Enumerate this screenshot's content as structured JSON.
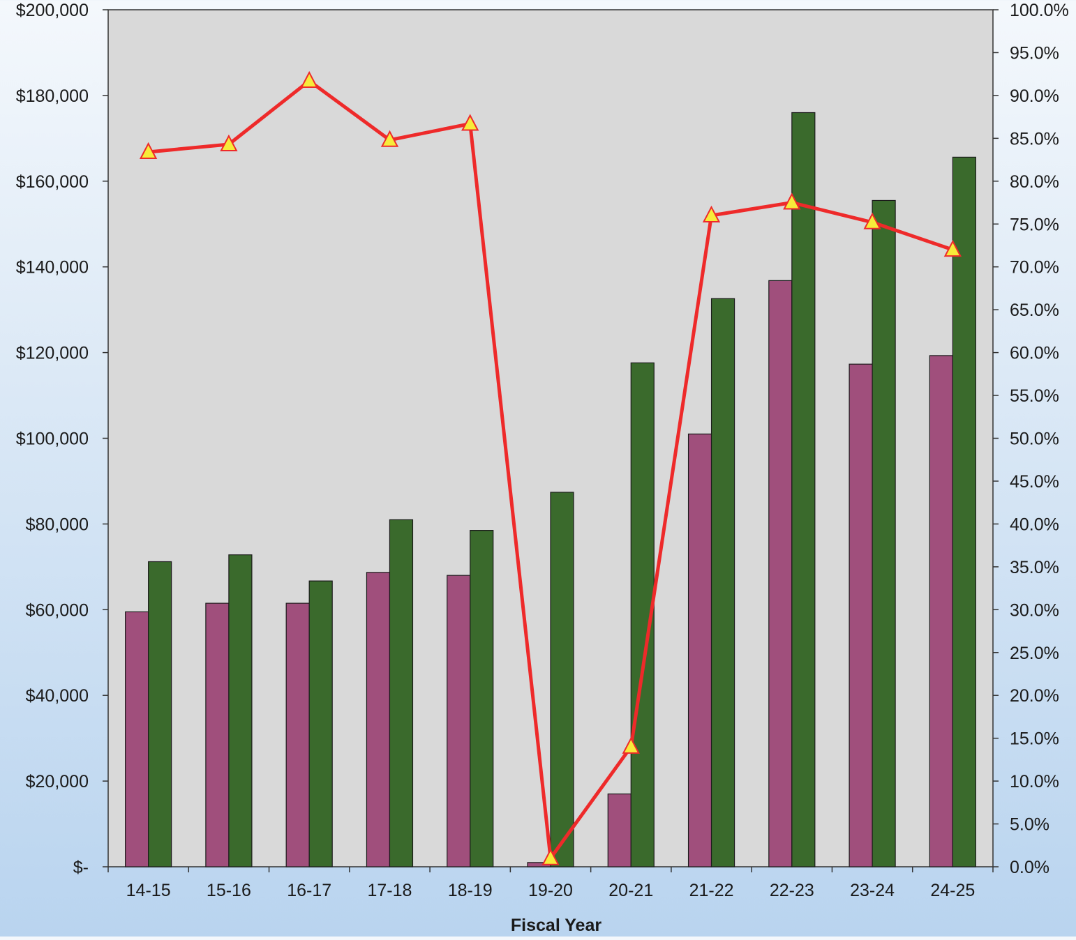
{
  "chart_data": {
    "type": "bar",
    "categories": [
      "14-15",
      "15-16",
      "16-17",
      "17-18",
      "18-19",
      "19-20",
      "20-21",
      "21-22",
      "22-23",
      "23-24",
      "24-25"
    ],
    "series": [
      {
        "values": [
          59500,
          61500,
          61500,
          68700,
          68000,
          1000,
          17000,
          101000,
          136800,
          117300,
          119300
        ],
        "color": "#a04f7c",
        "axis": "left"
      },
      {
        "values": [
          71200,
          72800,
          66700,
          81000,
          78500,
          87400,
          117600,
          132600,
          176000,
          155500,
          165600
        ],
        "color": "#3a6a2c",
        "axis": "left"
      },
      {
        "type": "line",
        "values": [
          0.834,
          0.843,
          0.917,
          0.848,
          0.867,
          0.01,
          0.14,
          0.76,
          0.775,
          0.752,
          0.72
        ],
        "color": "#ee2a2a",
        "marker": "triangle",
        "marker_color": "#f7ec3a",
        "axis": "right"
      }
    ],
    "xlabel": "Fiscal Year",
    "ylabel": "",
    "y_left": {
      "range": [
        0,
        200000
      ],
      "ticks": [
        0,
        20000,
        40000,
        60000,
        80000,
        100000,
        120000,
        140000,
        160000,
        180000,
        200000
      ],
      "tick_labels": [
        "$-",
        "$20,000",
        "$40,000",
        "$60,000",
        "$80,000",
        "$100,000",
        "$120,000",
        "$140,000",
        "$160,000",
        "$180,000",
        "$200,000"
      ]
    },
    "y_right": {
      "range": [
        0,
        1
      ],
      "ticks": [
        0,
        0.05,
        0.1,
        0.15,
        0.2,
        0.25,
        0.3,
        0.35,
        0.4,
        0.45,
        0.5,
        0.55,
        0.6,
        0.65,
        0.7,
        0.75,
        0.8,
        0.85,
        0.9,
        0.95,
        1.0
      ],
      "tick_labels": [
        "0.0%",
        "5.0%",
        "10.0%",
        "15.0%",
        "20.0%",
        "25.0%",
        "30.0%",
        "35.0%",
        "40.0%",
        "45.0%",
        "50.0%",
        "55.0%",
        "60.0%",
        "65.0%",
        "70.0%",
        "75.0%",
        "80.0%",
        "85.0%",
        "90.0%",
        "95.0%",
        "100.0%"
      ]
    },
    "grid": false,
    "legend": "none",
    "plot_background": "#d9d9d9"
  }
}
